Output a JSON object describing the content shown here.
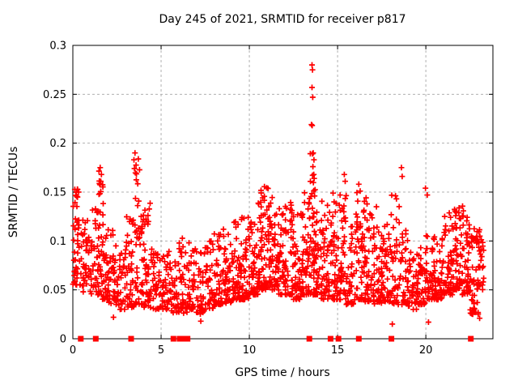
{
  "figure": {
    "background": "#ffffff",
    "text_color": "#000000",
    "border_color": "#000000",
    "grid_color": "#b0b0b0"
  },
  "chart_data": {
    "type": "scatter",
    "title": "Day 245 of 2021, SRMTID for receiver p817",
    "xlabel": "GPS time / hours",
    "ylabel": "SRMTID / TECUs",
    "xlim": [
      0,
      23.8
    ],
    "ylim": [
      0,
      0.3
    ],
    "xticks": [
      {
        "v": 0,
        "label": "0"
      },
      {
        "v": 5,
        "label": "5"
      },
      {
        "v": 10,
        "label": "10"
      },
      {
        "v": 15,
        "label": "15"
      },
      {
        "v": 20,
        "label": "20"
      }
    ],
    "yticks": [
      {
        "v": 0,
        "label": "0"
      },
      {
        "v": 0.05,
        "label": "0.05"
      },
      {
        "v": 0.1,
        "label": "0.1"
      },
      {
        "v": 0.15,
        "label": "0.15"
      },
      {
        "v": 0.2,
        "label": "0.2"
      },
      {
        "v": 0.25,
        "label": "0.25"
      },
      {
        "v": 0.3,
        "label": "0.3"
      }
    ],
    "grid": true,
    "legend": null,
    "marker": {
      "shape": "plus",
      "color": "#ff0000",
      "size": 7
    },
    "zero_marker": {
      "shape": "square",
      "color": "#ff0000",
      "size": 7
    },
    "seed": 7,
    "zero_points_x": [
      0.45,
      1.3,
      3.3,
      5.7,
      6.05,
      6.3,
      6.5,
      13.4,
      14.6,
      15.05,
      16.2,
      18.05,
      22.55
    ],
    "outliers": [
      [
        13.55,
        0.28
      ],
      [
        13.58,
        0.275
      ],
      [
        13.55,
        0.257
      ],
      [
        13.59,
        0.247
      ],
      [
        13.52,
        0.219
      ],
      [
        13.56,
        0.218
      ],
      [
        13.62,
        0.19
      ],
      [
        13.66,
        0.183
      ],
      [
        13.6,
        0.176
      ],
      [
        13.65,
        0.168
      ],
      [
        3.52,
        0.19
      ],
      [
        3.46,
        0.183
      ],
      [
        3.49,
        0.174
      ],
      [
        1.55,
        0.175
      ],
      [
        1.62,
        0.168
      ],
      [
        1.58,
        0.161
      ],
      [
        18.62,
        0.175
      ],
      [
        18.66,
        0.166
      ],
      [
        15.38,
        0.168
      ],
      [
        15.43,
        0.161
      ],
      [
        16.2,
        0.158
      ],
      [
        16.28,
        0.151
      ],
      [
        19.98,
        0.154
      ],
      [
        20.08,
        0.147
      ],
      [
        17.2,
        0.135
      ],
      [
        11.7,
        0.133
      ],
      [
        7.25,
        0.018
      ],
      [
        18.1,
        0.015
      ],
      [
        20.15,
        0.017
      ],
      [
        2.3,
        0.022
      ],
      [
        23.05,
        0.021
      ]
    ],
    "cloud_bins": [
      [
        0.0,
        0.5,
        40,
        0.055,
        0.125,
        1.6
      ],
      [
        0.02,
        0.35,
        12,
        0.135,
        0.153,
        1.0
      ],
      [
        0.5,
        1.0,
        38,
        0.048,
        0.122,
        1.8
      ],
      [
        1.0,
        1.5,
        42,
        0.045,
        0.135,
        1.8
      ],
      [
        1.45,
        1.75,
        12,
        0.125,
        0.172,
        1.0
      ],
      [
        1.5,
        2.0,
        44,
        0.04,
        0.125,
        1.8
      ],
      [
        2.0,
        2.5,
        40,
        0.035,
        0.115,
        1.9
      ],
      [
        2.5,
        3.0,
        34,
        0.03,
        0.095,
        1.7
      ],
      [
        3.0,
        3.5,
        40,
        0.032,
        0.13,
        1.9
      ],
      [
        3.4,
        3.8,
        14,
        0.1,
        0.188,
        1.0
      ],
      [
        3.5,
        4.0,
        38,
        0.035,
        0.12,
        1.8
      ],
      [
        3.85,
        4.15,
        8,
        0.105,
        0.135,
        1.0
      ],
      [
        4.0,
        4.5,
        38,
        0.032,
        0.1,
        1.7
      ],
      [
        4.15,
        4.45,
        6,
        0.115,
        0.14,
        1.0
      ],
      [
        4.5,
        5.0,
        34,
        0.03,
        0.088,
        1.6
      ],
      [
        5.0,
        5.5,
        36,
        0.03,
        0.098,
        1.7
      ],
      [
        5.5,
        6.0,
        34,
        0.026,
        0.085,
        1.7
      ],
      [
        6.0,
        6.5,
        38,
        0.026,
        0.105,
        1.7
      ],
      [
        6.5,
        7.0,
        38,
        0.03,
        0.1,
        1.7
      ],
      [
        7.0,
        7.5,
        38,
        0.025,
        0.095,
        1.7
      ],
      [
        7.5,
        8.0,
        40,
        0.03,
        0.102,
        1.7
      ],
      [
        8.0,
        8.5,
        42,
        0.035,
        0.108,
        1.8
      ],
      [
        8.5,
        9.0,
        44,
        0.035,
        0.112,
        1.8
      ],
      [
        9.0,
        9.5,
        46,
        0.04,
        0.12,
        1.8
      ],
      [
        9.5,
        10.0,
        48,
        0.04,
        0.125,
        1.8
      ],
      [
        10.0,
        10.5,
        50,
        0.045,
        0.13,
        1.8
      ],
      [
        10.5,
        11.0,
        52,
        0.05,
        0.14,
        1.8
      ],
      [
        10.6,
        11.1,
        10,
        0.125,
        0.156,
        1.0
      ],
      [
        11.0,
        11.5,
        52,
        0.05,
        0.145,
        1.8
      ],
      [
        11.5,
        12.0,
        48,
        0.045,
        0.135,
        1.8
      ],
      [
        12.0,
        12.5,
        48,
        0.045,
        0.14,
        1.8
      ],
      [
        12.5,
        13.0,
        48,
        0.04,
        0.135,
        1.8
      ],
      [
        13.0,
        13.5,
        52,
        0.045,
        0.15,
        1.8
      ],
      [
        13.4,
        13.75,
        14,
        0.12,
        0.19,
        1.0
      ],
      [
        13.5,
        14.0,
        52,
        0.045,
        0.15,
        1.8
      ],
      [
        14.0,
        14.5,
        48,
        0.04,
        0.145,
        1.8
      ],
      [
        14.5,
        15.0,
        48,
        0.04,
        0.15,
        1.8
      ],
      [
        15.0,
        15.5,
        48,
        0.04,
        0.155,
        1.8
      ],
      [
        15.5,
        16.0,
        44,
        0.035,
        0.125,
        1.8
      ],
      [
        16.0,
        16.5,
        48,
        0.04,
        0.152,
        1.8
      ],
      [
        16.5,
        17.0,
        44,
        0.038,
        0.145,
        1.8
      ],
      [
        17.0,
        17.5,
        44,
        0.035,
        0.118,
        1.8
      ],
      [
        17.5,
        18.0,
        44,
        0.038,
        0.122,
        1.8
      ],
      [
        18.0,
        18.5,
        44,
        0.035,
        0.148,
        1.8
      ],
      [
        18.5,
        19.0,
        40,
        0.035,
        0.115,
        1.8
      ],
      [
        19.0,
        19.5,
        38,
        0.03,
        0.1,
        1.7
      ],
      [
        19.5,
        20.0,
        40,
        0.035,
        0.105,
        1.7
      ],
      [
        20.0,
        20.5,
        42,
        0.04,
        0.11,
        1.7
      ],
      [
        20.5,
        21.0,
        44,
        0.04,
        0.115,
        1.8
      ],
      [
        21.0,
        21.5,
        48,
        0.045,
        0.13,
        1.8
      ],
      [
        21.4,
        22.4,
        10,
        0.115,
        0.138,
        1.0
      ],
      [
        21.5,
        22.0,
        50,
        0.05,
        0.135,
        1.8
      ],
      [
        22.0,
        22.5,
        48,
        0.045,
        0.128,
        1.8
      ],
      [
        22.5,
        23.0,
        36,
        0.025,
        0.095,
        1.6
      ],
      [
        22.55,
        23.0,
        14,
        0.095,
        0.113,
        1.0
      ],
      [
        23.0,
        23.3,
        24,
        0.05,
        0.112,
        1.4
      ]
    ]
  }
}
